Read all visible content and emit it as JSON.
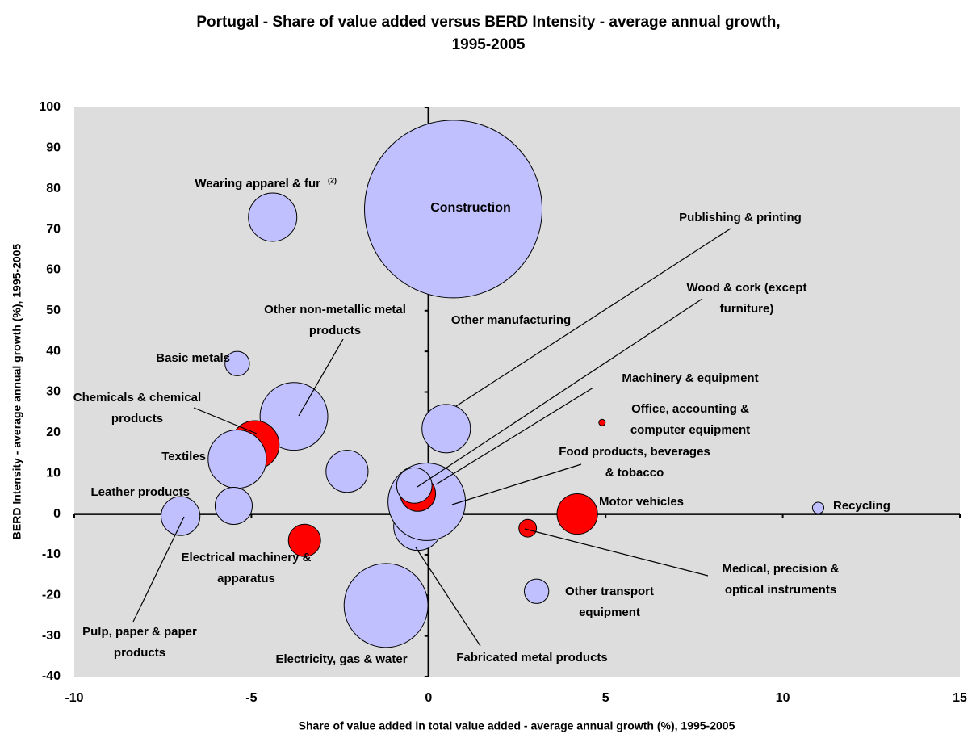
{
  "chart_data": {
    "type": "bubble",
    "title": "Portugal - Share of value added versus BERD Intensity - average annual growth, 1995-2005",
    "x_label": "Share of value added in total value added - average annual growth (%), 1995-2005",
    "y_label": "BERD Intensity - average annual growth (%), 1995-2005",
    "xlim": [
      -10,
      15
    ],
    "xticks": [
      -10,
      -5,
      0,
      5,
      10,
      15
    ],
    "ylim": [
      -40,
      100
    ],
    "yticks": [
      -40,
      -30,
      -20,
      -10,
      0,
      10,
      20,
      30,
      40,
      50,
      60,
      70,
      80,
      90,
      100
    ],
    "background": "#dddddd",
    "points": [
      {
        "x": 0.7,
        "y": 75,
        "size": 121,
        "color": "#c0c0ff"
      },
      {
        "x": -4.4,
        "y": 73,
        "size": 9,
        "color": "#c0c0ff"
      },
      {
        "x": -5.4,
        "y": 37,
        "size": 2.3,
        "color": "#c0c0ff"
      },
      {
        "x": -3.8,
        "y": 24,
        "size": 17.6,
        "color": "#c0c0ff"
      },
      {
        "x": -4.9,
        "y": 17,
        "size": 9,
        "color": "#ff0000"
      },
      {
        "x": -5.4,
        "y": 13.5,
        "size": 13,
        "color": "#c0c0ff"
      },
      {
        "x": -5.5,
        "y": 2,
        "size": 5.3,
        "color": "#c0c0ff"
      },
      {
        "x": -7,
        "y": -0.5,
        "size": 5.8,
        "color": "#c0c0ff"
      },
      {
        "x": -2.3,
        "y": 10.5,
        "size": 6.8,
        "color": "#c0c0ff"
      },
      {
        "x": -3.5,
        "y": -6.5,
        "size": 4,
        "color": "#ff0000"
      },
      {
        "x": -1.2,
        "y": -22.5,
        "size": 27,
        "color": "#c0c0ff"
      },
      {
        "x": 0.5,
        "y": 21,
        "size": 9,
        "color": "#c0c0ff"
      },
      {
        "x": -0.3,
        "y": -3,
        "size": 9,
        "color": "#c0c0ff"
      },
      {
        "x": -0.05,
        "y": 3,
        "size": 23,
        "color": "#c0c0ff"
      },
      {
        "x": -0.3,
        "y": 5,
        "size": 4.8,
        "color": "#ff0000"
      },
      {
        "x": -0.4,
        "y": 7,
        "size": 4.8,
        "color": "#c0c0ff"
      },
      {
        "x": 4.9,
        "y": 22.5,
        "size": 0.16,
        "color": "#ff0000"
      },
      {
        "x": 4.2,
        "y": 0,
        "size": 6.3,
        "color": "#ff0000"
      },
      {
        "x": 2.8,
        "y": -3.5,
        "size": 1.2,
        "color": "#ff0000"
      },
      {
        "x": 3.05,
        "y": -19,
        "size": 2.3,
        "color": "#c0c0ff"
      },
      {
        "x": 11,
        "y": 1.5,
        "size": 0.5,
        "color": "#c0c0ff"
      }
    ],
    "annotations": [
      [
        "Wearing apparel & fur"
      ],
      [
        "(2)"
      ],
      [
        "Construction"
      ],
      [
        "Publishing & printing"
      ],
      [
        "Wood & cork (except",
        "furniture)"
      ],
      [
        "Other manufacturing"
      ],
      [
        "Other non-metallic metal",
        "products"
      ],
      [
        "Basic metals"
      ],
      [
        "Machinery & equipment"
      ],
      [
        "Chemicals & chemical",
        "products"
      ],
      [
        "Office, accounting &",
        "computer equipment"
      ],
      [
        "Textiles"
      ],
      [
        "Food products, beverages",
        "& tobacco"
      ],
      [
        "Leather products"
      ],
      [
        "Motor vehicles"
      ],
      [
        "Recycling"
      ],
      [
        "Electrical machinery &",
        "apparatus"
      ],
      [
        "Medical, precision &",
        "optical instruments"
      ],
      [
        "Other transport",
        "equipment"
      ],
      [
        "Pulp, paper & paper",
        "products"
      ],
      [
        "Electricity, gas & water"
      ],
      [
        "Fabricated metal products"
      ]
    ]
  }
}
